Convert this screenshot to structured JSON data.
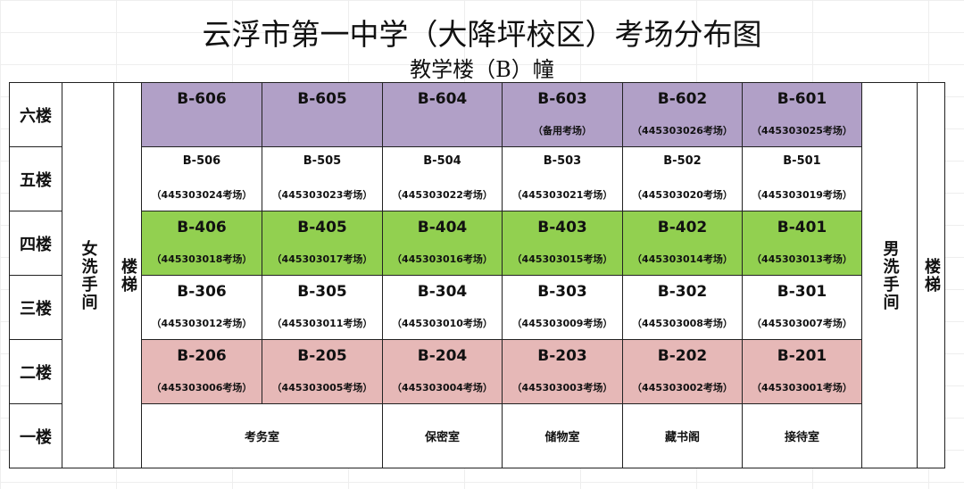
{
  "title": "云浮市第一中学（大降坪校区）考场分布图",
  "subtitle": "教学楼（B）幢",
  "colors": {
    "floor6": "#b1a0c7",
    "floor4": "#92d050",
    "floor2": "#e6b8b7",
    "default": "#ffffff"
  },
  "left_facilities": {
    "restroom": "女洗手间",
    "stairs": "楼梯"
  },
  "right_facilities": {
    "restroom": "男洗手间",
    "stairs": "楼梯"
  },
  "floors": [
    {
      "label": "六楼",
      "color": "floor6",
      "rooms": [
        {
          "id": "B-606",
          "note": ""
        },
        {
          "id": "B-605",
          "note": ""
        },
        {
          "id": "B-604",
          "note": ""
        },
        {
          "id": "B-603",
          "note": "（备用考场）"
        },
        {
          "id": "B-602",
          "note": "（445303026考场）"
        },
        {
          "id": "B-601",
          "note": "（445303025考场）"
        }
      ]
    },
    {
      "label": "五楼",
      "color": "default",
      "small": true,
      "rooms": [
        {
          "id": "B-506",
          "note": "（445303024考场）"
        },
        {
          "id": "B-505",
          "note": "（445303023考场）"
        },
        {
          "id": "B-504",
          "note": "（445303022考场）"
        },
        {
          "id": "B-503",
          "note": "（445303021考场）"
        },
        {
          "id": "B-502",
          "note": "（445303020考场）"
        },
        {
          "id": "B-501",
          "note": "（445303019考场）"
        }
      ]
    },
    {
      "label": "四楼",
      "color": "floor4",
      "rooms": [
        {
          "id": "B-406",
          "note": "（445303018考场）"
        },
        {
          "id": "B-405",
          "note": "（445303017考场）"
        },
        {
          "id": "B-404",
          "note": "（445303016考场）"
        },
        {
          "id": "B-403",
          "note": "（445303015考场）"
        },
        {
          "id": "B-402",
          "note": "（445303014考场）"
        },
        {
          "id": "B-401",
          "note": "（445303013考场）"
        }
      ]
    },
    {
      "label": "三楼",
      "color": "default",
      "rooms": [
        {
          "id": "B-306",
          "note": "（445303012考场）"
        },
        {
          "id": "B-305",
          "note": "（445303011考场）"
        },
        {
          "id": "B-304",
          "note": "（445303010考场）"
        },
        {
          "id": "B-303",
          "note": "（445303009考场）"
        },
        {
          "id": "B-302",
          "note": "（445303008考场）"
        },
        {
          "id": "B-301",
          "note": "（445303007考场）"
        }
      ]
    },
    {
      "label": "二楼",
      "color": "floor2",
      "rooms": [
        {
          "id": "B-206",
          "note": "（445303006考场）"
        },
        {
          "id": "B-205",
          "note": "（445303005考场）"
        },
        {
          "id": "B-204",
          "note": "（445303004考场）"
        },
        {
          "id": "B-203",
          "note": "（445303003考场）"
        },
        {
          "id": "B-202",
          "note": "（445303002考场）"
        },
        {
          "id": "B-201",
          "note": "（445303001考场）"
        }
      ]
    },
    {
      "label": "一楼",
      "color": "default",
      "ground": [
        "考务室",
        "保密室",
        "储物室",
        "藏书阁",
        "接待室"
      ]
    }
  ]
}
